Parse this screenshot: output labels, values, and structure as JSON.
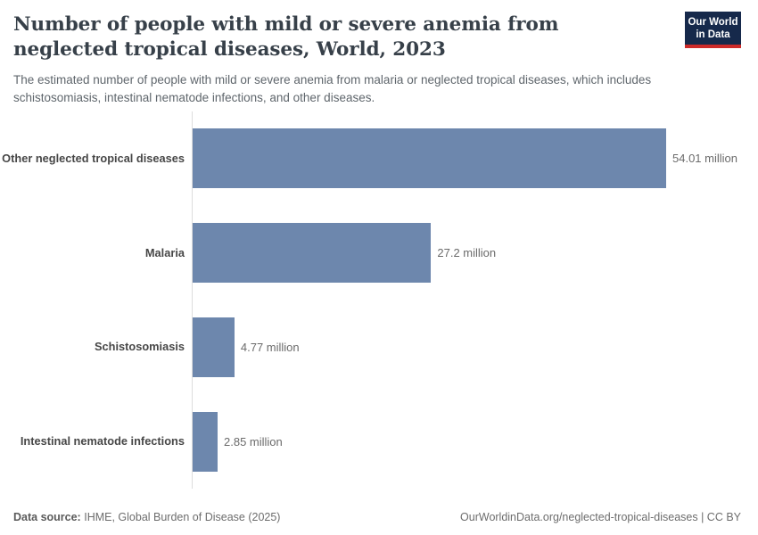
{
  "header": {
    "title": "Number of people with mild or severe anemia from neglected tropical diseases, World, 2023",
    "subtitle": "The estimated number of people with mild or severe anemia from malaria or neglected tropical diseases, which includes schistosomiasis, intestinal nematode infections, and other diseases.",
    "logo": {
      "line1": "Our World",
      "line2": "in Data"
    }
  },
  "chart_data": {
    "type": "bar",
    "orientation": "horizontal",
    "title": "Number of people with mild or severe anemia from neglected tropical diseases, World, 2023",
    "categories": [
      "Other neglected tropical diseases",
      "Malaria",
      "Schistosomiasis",
      "Intestinal nematode infections"
    ],
    "values": [
      54.01,
      27.2,
      4.77,
      2.85
    ],
    "value_labels": [
      "54.01 million",
      "27.2 million",
      "4.77 million",
      "2.85 million"
    ],
    "unit": "million",
    "xlim": [
      0,
      54.01
    ],
    "grid": false,
    "legend": "none"
  },
  "footer": {
    "datasource_label": "Data source:",
    "datasource_value": "IHME, Global Burden of Disease (2025)",
    "license_text": "OurWorldinData.org/neglected-tropical-diseases | CC BY"
  },
  "colors": {
    "bar": "#6d87ad",
    "logo_background": "#16294b",
    "logo_accent_red": "#cd2a29",
    "axis_line": "#dcdcdc",
    "title_text": "#374049"
  }
}
